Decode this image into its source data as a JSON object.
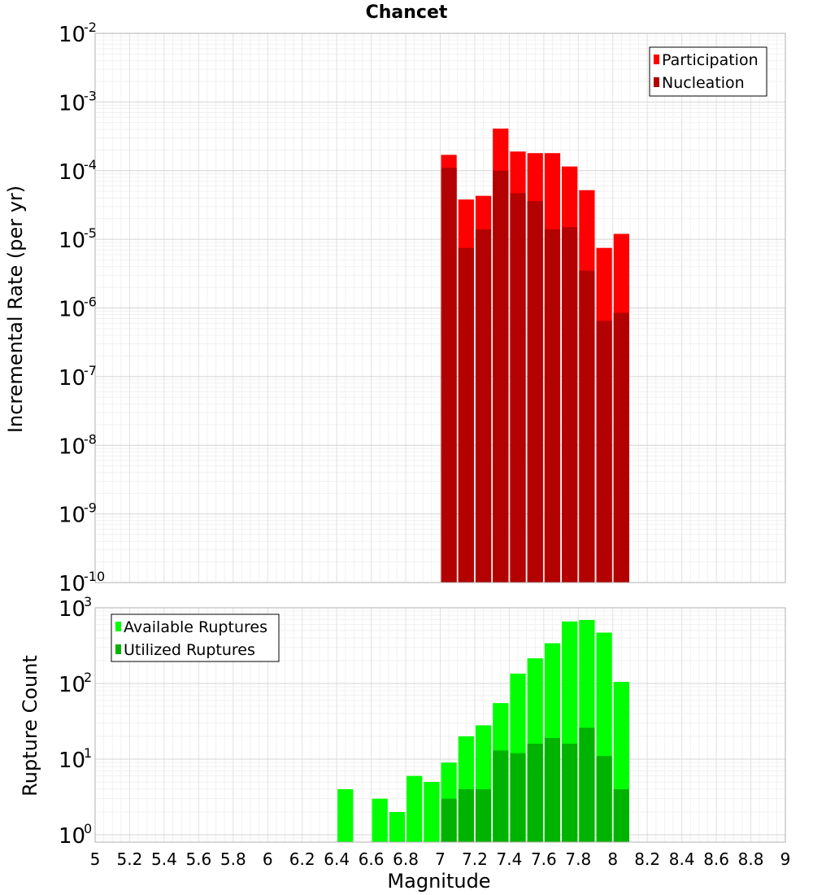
{
  "chart_data": [
    {
      "type": "bar",
      "title": "Chancet",
      "xlabel": "",
      "ylabel": "Incremental Rate (per yr)",
      "yscale": "log",
      "xlim": [
        5,
        9
      ],
      "ylim": [
        1e-10,
        0.01
      ],
      "ytick_labels": [
        {
          "base": "10",
          "exp": "-10",
          "value": 1e-10
        },
        {
          "base": "10",
          "exp": "-9",
          "value": 1e-09
        },
        {
          "base": "10",
          "exp": "-8",
          "value": 1e-08
        },
        {
          "base": "10",
          "exp": "-7",
          "value": 1e-07
        },
        {
          "base": "10",
          "exp": "-6",
          "value": 1e-06
        },
        {
          "base": "10",
          "exp": "-5",
          "value": 1e-05
        },
        {
          "base": "10",
          "exp": "-4",
          "value": 0.0001
        },
        {
          "base": "10",
          "exp": "-3",
          "value": 0.001
        },
        {
          "base": "10",
          "exp": "-2",
          "value": 0.01
        }
      ],
      "grid": true,
      "legend_position": "top-right",
      "x": [
        7.05,
        7.15,
        7.25,
        7.35,
        7.45,
        7.55,
        7.65,
        7.75,
        7.85,
        7.95,
        8.05
      ],
      "series": [
        {
          "name": "Participation",
          "color": "#ff0000",
          "values": [
            0.00017,
            3.8e-05,
            4.3e-05,
            0.00041,
            0.00019,
            0.00018,
            0.00018,
            0.000115,
            5.2e-05,
            7.5e-06,
            1.2e-05
          ]
        },
        {
          "name": "Nucleation",
          "color": "#b30000",
          "values": [
            0.00011,
            7.5e-06,
            1.4e-05,
            0.0001,
            4.7e-05,
            3.6e-05,
            1.4e-05,
            1.5e-05,
            3.5e-06,
            6.5e-07,
            8.5e-07
          ]
        }
      ]
    },
    {
      "type": "bar",
      "title": "",
      "xlabel": "Magnitude",
      "ylabel": "Rupture Count",
      "yscale": "log",
      "xlim": [
        5,
        9
      ],
      "ylim": [
        0.8,
        1000
      ],
      "xticks": [
        "5",
        "5.2",
        "5.4",
        "5.6",
        "5.8",
        "6",
        "6.2",
        "6.4",
        "6.6",
        "6.8",
        "7",
        "7.2",
        "7.4",
        "7.6",
        "7.8",
        "8",
        "8.2",
        "8.4",
        "8.6",
        "8.8",
        "9"
      ],
      "ytick_labels": [
        {
          "base": "10",
          "exp": "0",
          "value": 1
        },
        {
          "base": "10",
          "exp": "1",
          "value": 10
        },
        {
          "base": "10",
          "exp": "2",
          "value": 100
        },
        {
          "base": "10",
          "exp": "3",
          "value": 1000
        }
      ],
      "grid": true,
      "legend_position": "top-left",
      "x": [
        6.45,
        6.55,
        6.65,
        6.75,
        6.85,
        6.95,
        7.05,
        7.15,
        7.25,
        7.35,
        7.45,
        7.55,
        7.65,
        7.75,
        7.85,
        7.95,
        8.05
      ],
      "series": [
        {
          "name": "Available Ruptures",
          "color": "#00ff00",
          "values": [
            4,
            0,
            3,
            2,
            6,
            5,
            9,
            20,
            28,
            55,
            135,
            215,
            340,
            660,
            690,
            470,
            105
          ]
        },
        {
          "name": "Utilized Ruptures",
          "color": "#00b300",
          "values": [
            0,
            0,
            0,
            0,
            0,
            0,
            3,
            4,
            4,
            13,
            12,
            16,
            19,
            16,
            26,
            11,
            4
          ]
        }
      ]
    }
  ]
}
